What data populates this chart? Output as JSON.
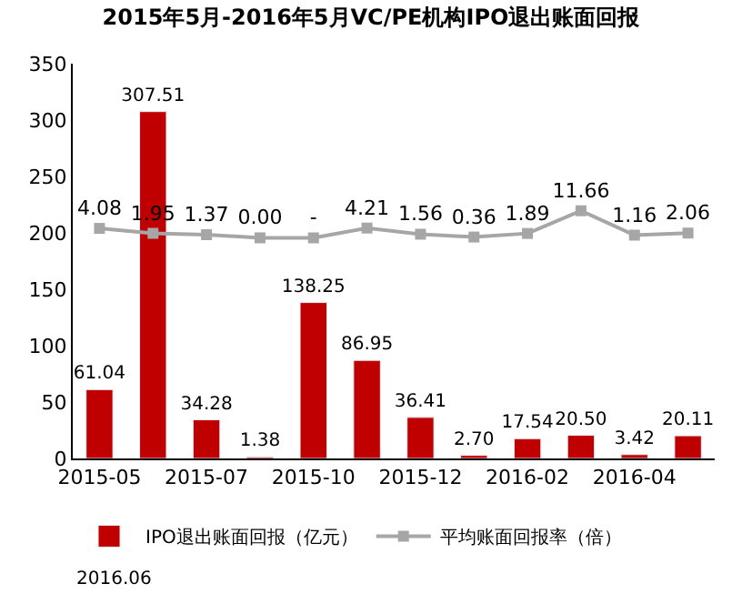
{
  "chart_data": {
    "type": "bar",
    "title": "2015年5月-2016年5月VC/PE机构IPO退出账面回报",
    "categories": [
      "2015-05",
      null,
      "2015-07",
      null,
      "2015-10",
      null,
      "2015-12",
      null,
      "2016-02",
      null,
      "2016-04",
      null
    ],
    "series": [
      {
        "name": "IPO退出账面回报（亿元）",
        "color": "#c00000",
        "values": [
          61.04,
          307.51,
          34.28,
          1.38,
          138.25,
          86.95,
          36.41,
          2.7,
          17.54,
          20.5,
          3.42,
          20.11
        ],
        "value_labels": [
          "61.04",
          "307.51",
          "34.28",
          "1.38",
          "138.25",
          "86.95",
          "36.41",
          "2.70",
          "17.54",
          "20.50",
          "3.42",
          "20.11"
        ]
      },
      {
        "name": "平均账面回报率（倍）",
        "type": "line",
        "axis": "y2",
        "color": "#a6a6a6",
        "marker": "square",
        "values": [
          4.08,
          1.95,
          1.37,
          0.0,
          0,
          4.21,
          1.56,
          0.36,
          1.89,
          11.66,
          1.16,
          2.06
        ],
        "value_labels": [
          "4.08",
          "1.95",
          "1.37",
          "0.00",
          "-",
          "4.21",
          "1.56",
          "0.36",
          "1.89",
          "11.66",
          "1.16",
          "2.06"
        ]
      }
    ],
    "ylim": [
      0,
      350
    ],
    "yticks": [
      0,
      50,
      100,
      150,
      200,
      250,
      300,
      350
    ],
    "y2lim": [
      -95,
      75
    ],
    "legend": "bottom",
    "annotations": [
      "2016.06"
    ]
  }
}
